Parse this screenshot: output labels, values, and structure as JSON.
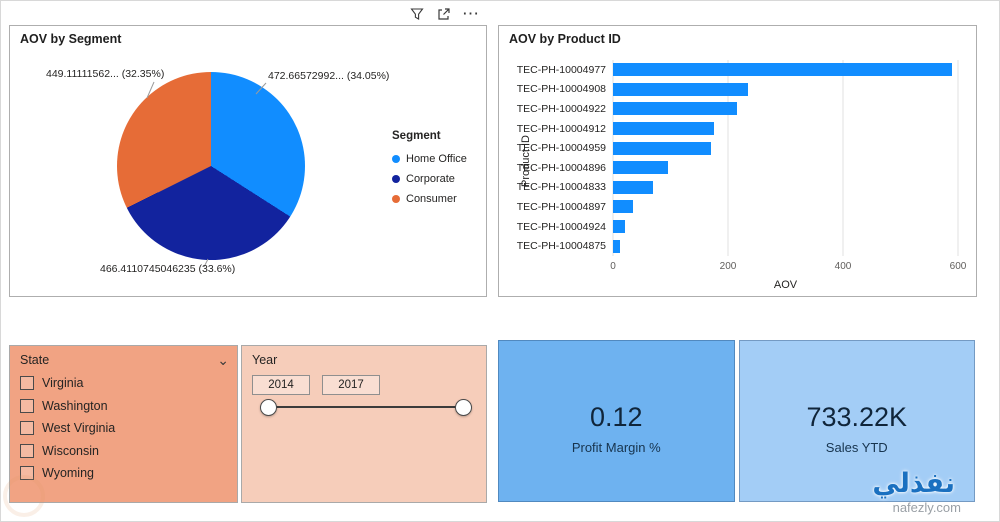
{
  "toolbar": {
    "more_glyph": "⋯",
    "icons": [
      "filter-icon",
      "popout-icon",
      "more-options-icon"
    ]
  },
  "chart_data": [
    {
      "type": "pie",
      "title": "AOV by Segment",
      "legend_title": "Segment",
      "legend_position": "right",
      "slices": [
        {
          "label": "Home Office",
          "value": 472.66572992,
          "pct": 34.05,
          "color": "#118DFF"
        },
        {
          "label": "Corporate",
          "value": 466.4110745046235,
          "pct": 33.6,
          "color": "#12239E"
        },
        {
          "label": "Consumer",
          "value": 449.11111562,
          "pct": 32.35,
          "color": "#E66C37"
        }
      ],
      "callouts": {
        "left": "449.11111562... (32.35%)",
        "right": "472.66572992... (34.05%)",
        "bottom": "466.4110745046235 (33.6%)"
      }
    },
    {
      "type": "bar",
      "orientation": "horizontal",
      "title": "AOV by Product ID",
      "xlabel": "AOV",
      "ylabel": "Product ID",
      "categories": [
        "TEC-PH-10004977",
        "TEC-PH-10004908",
        "TEC-PH-10004922",
        "TEC-PH-10004912",
        "TEC-PH-10004959",
        "TEC-PH-10004896",
        "TEC-PH-10004833",
        "TEC-PH-10004897",
        "TEC-PH-10004924",
        "TEC-PH-10004875"
      ],
      "values": [
        590,
        235,
        215,
        175,
        170,
        95,
        70,
        35,
        20,
        12
      ],
      "xlim": [
        0,
        600
      ],
      "xticks": [
        0,
        200,
        400,
        600
      ],
      "bar_color": "#118DFF",
      "grid": true
    }
  ],
  "state_slicer": {
    "title": "State",
    "bg": "#F1A383",
    "items": [
      {
        "label": "Virginia",
        "checked": false
      },
      {
        "label": "Washington",
        "checked": false
      },
      {
        "label": "West Virginia",
        "checked": false
      },
      {
        "label": "Wisconsin",
        "checked": false
      },
      {
        "label": "Wyoming",
        "checked": false
      }
    ]
  },
  "year_slicer": {
    "title": "Year",
    "bg": "#F6CDBA",
    "start": "2014",
    "end": "2017"
  },
  "cards": [
    {
      "value": "0.12",
      "label": "Profit Margin %",
      "bg": "#6EB2F0"
    },
    {
      "value": "733.22K",
      "label": "Sales YTD",
      "bg": "#A3CDF6"
    }
  ],
  "watermark": {
    "brand": "نفذلي",
    "site": "nafezly.com"
  }
}
